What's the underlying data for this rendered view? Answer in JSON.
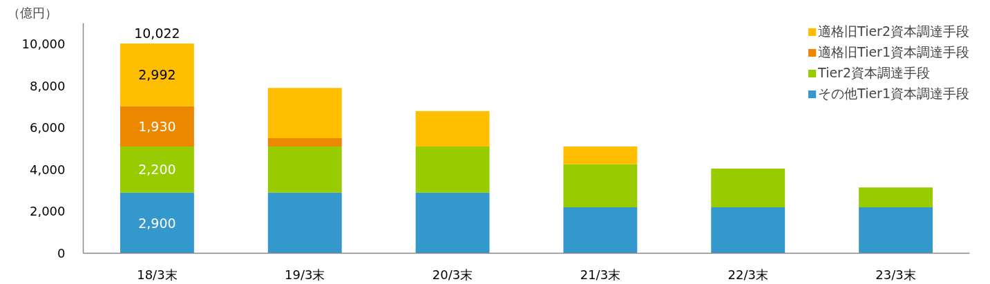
{
  "chart_data": {
    "type": "bar",
    "stacked": true,
    "ylabel": "（億円）",
    "categories": [
      "18/3末",
      "19/3末",
      "20/3末",
      "21/3末",
      "22/3末",
      "23/3末"
    ],
    "series": [
      {
        "name": "その他Tier1資本調達手段",
        "color": "#3598cc",
        "values": [
          2900,
          2900,
          2900,
          2200,
          2200,
          2200
        ],
        "value_labels": [
          "2,900",
          null,
          null,
          null,
          null,
          null
        ]
      },
      {
        "name": "Tier2資本調達手段",
        "color": "#99cc00",
        "values": [
          2200,
          2200,
          2200,
          2050,
          1850,
          950
        ],
        "value_labels": [
          "2,200",
          null,
          null,
          null,
          null,
          null
        ]
      },
      {
        "name": "適格旧Tier1資本調達手段",
        "color": "#ec8700",
        "values": [
          1930,
          400,
          null,
          null,
          null,
          null
        ],
        "value_labels": [
          "1,930",
          null,
          null,
          null,
          null,
          null
        ]
      },
      {
        "name": "適格旧Tier2資本調達手段",
        "color": "#ffbf00",
        "values": [
          2992,
          2400,
          1700,
          850,
          null,
          null
        ],
        "value_labels": [
          "2,992",
          null,
          null,
          null,
          null,
          null
        ]
      }
    ],
    "totals": [
      "10,022",
      null,
      null,
      null,
      null,
      null
    ],
    "ylim": [
      0,
      11000
    ],
    "yticks": [
      0,
      {
        "value": 2000,
        "label": "2,000"
      },
      {
        "value": 4000,
        "label": "4,000"
      },
      {
        "value": 6000,
        "label": "6,000"
      },
      {
        "value": 8000,
        "label": "8,000"
      },
      {
        "value": 10000,
        "label": "10,000"
      }
    ],
    "grid": false,
    "legend": "top right"
  }
}
